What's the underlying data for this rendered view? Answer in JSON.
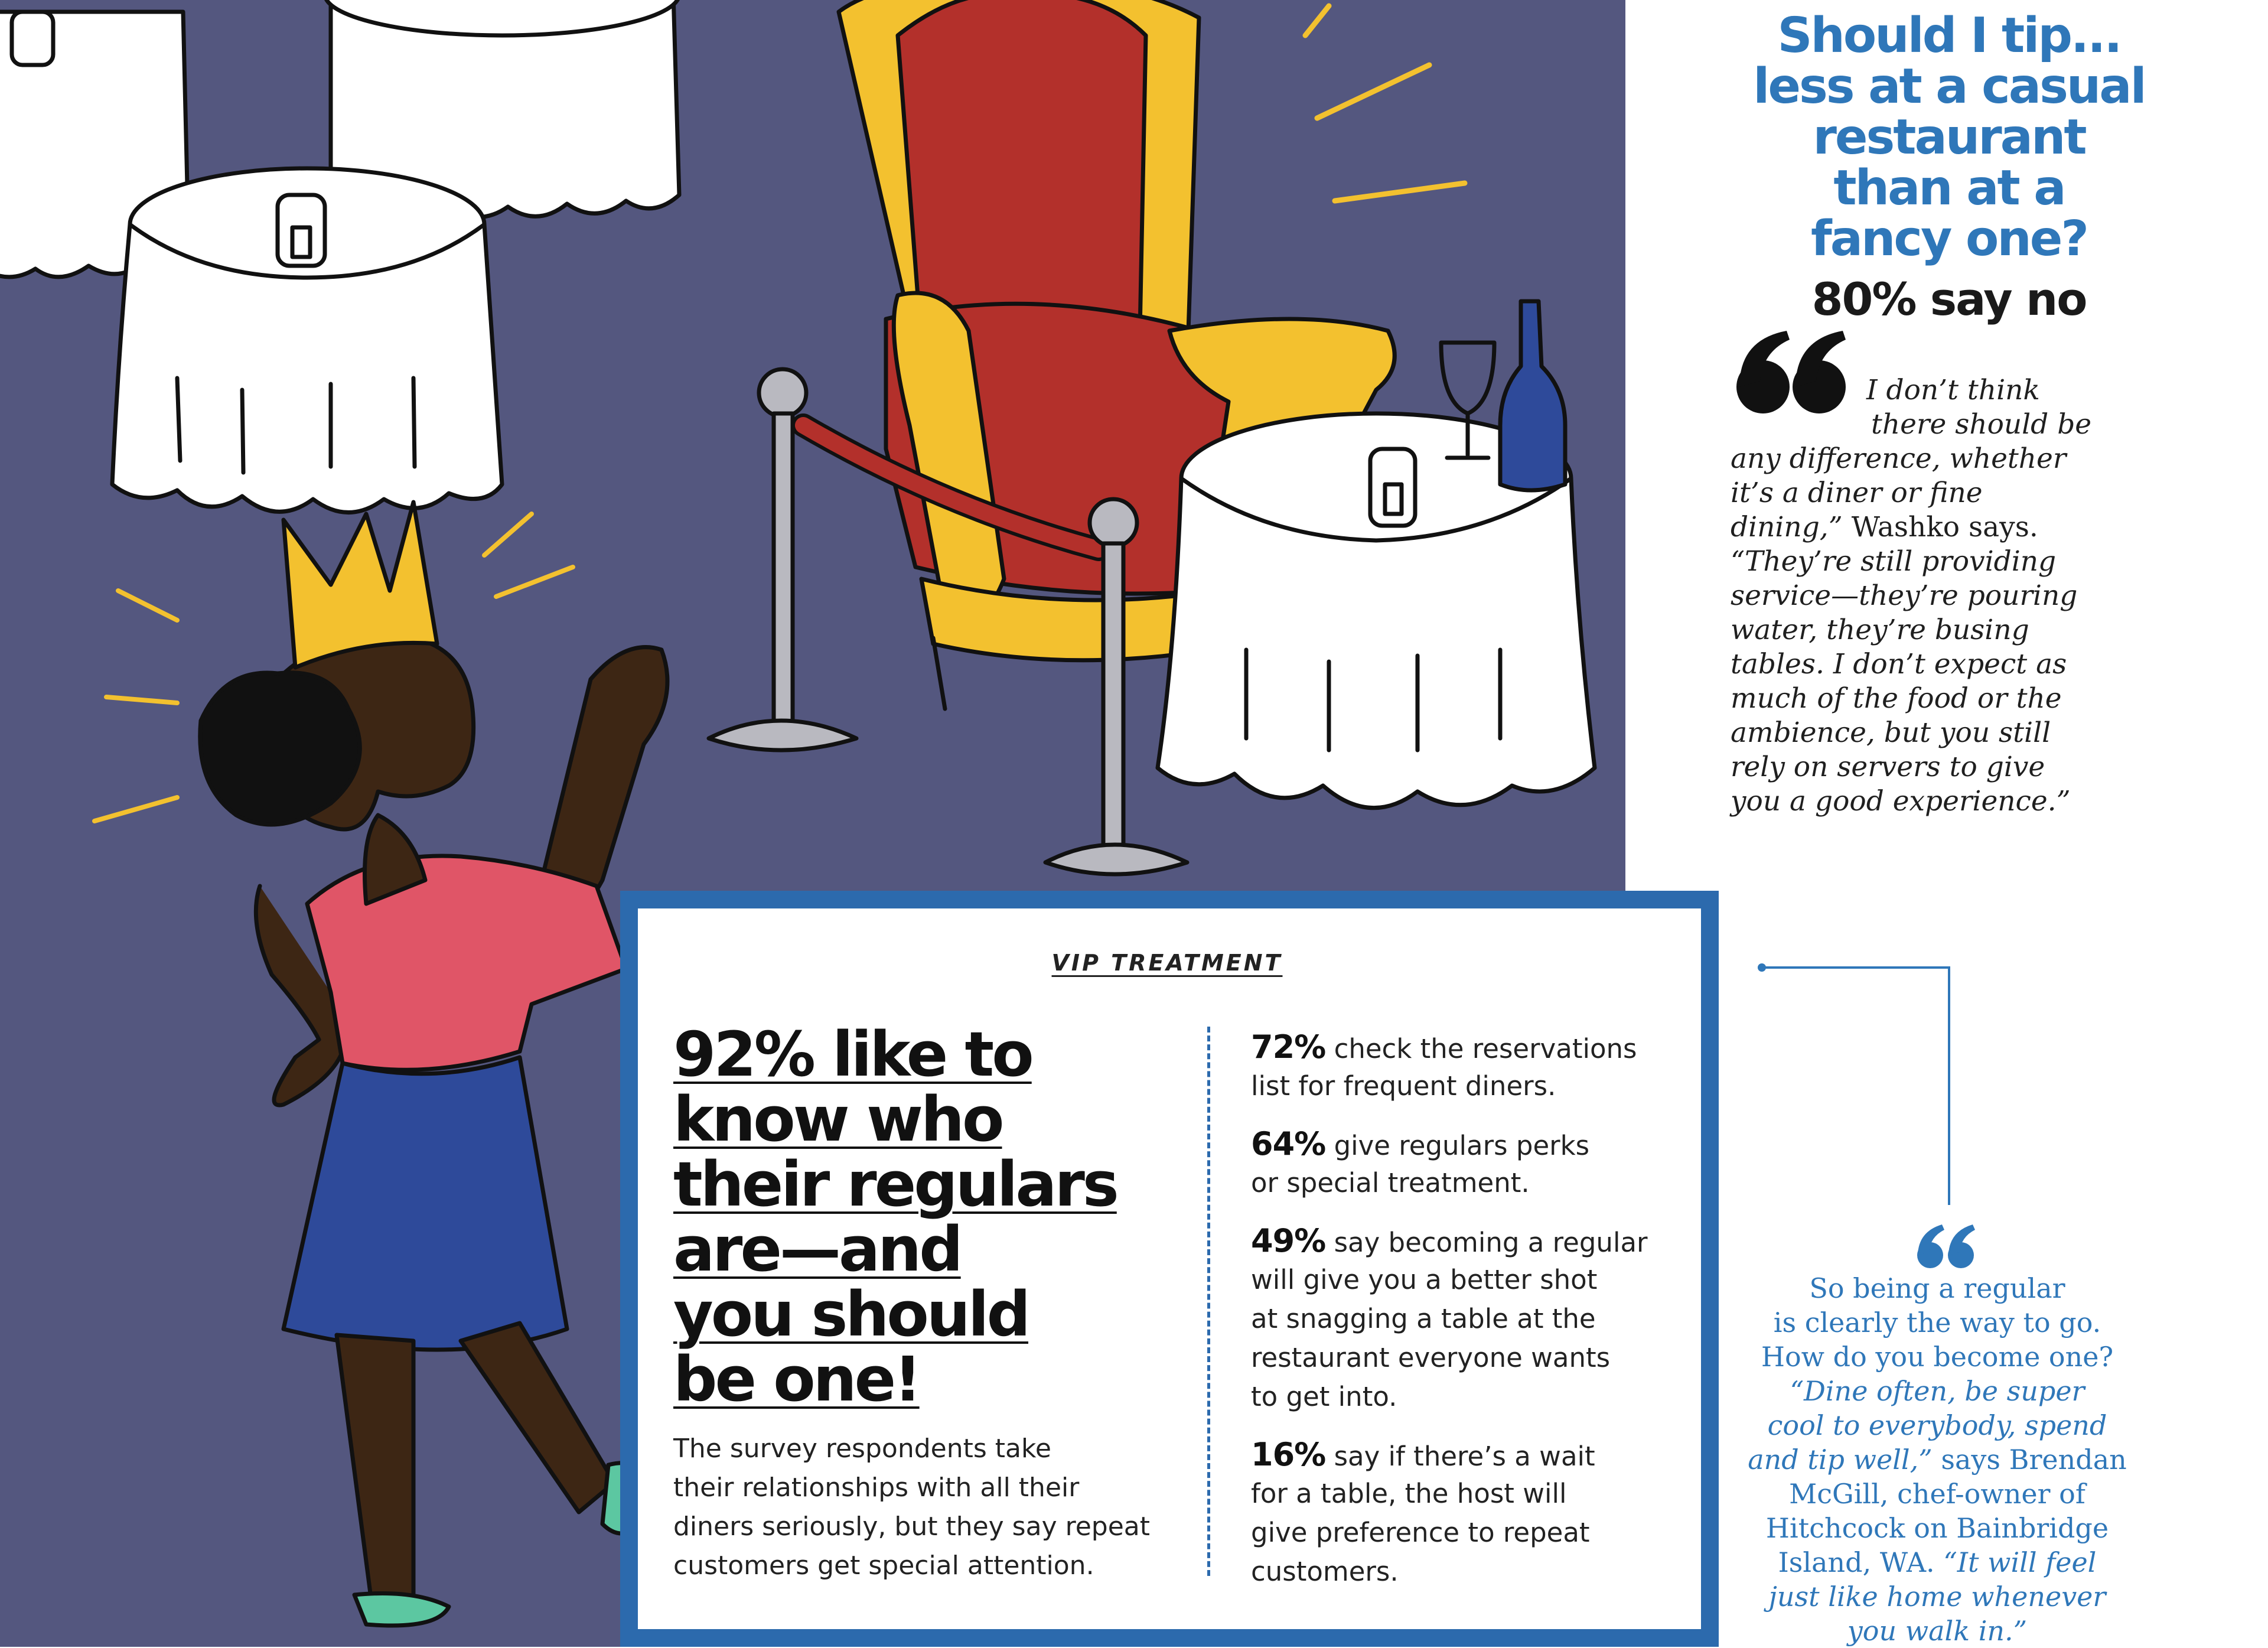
{
  "tip_sidebar": {
    "heading_lines": [
      "Should I tip...",
      "less at a casual",
      "restaurant",
      "than at a",
      "fancy one?"
    ],
    "stat": "80% say no",
    "quote_lines": [
      {
        "it": "I don’t think",
        "rm": ""
      },
      {
        "it": "there should be",
        "rm": ""
      },
      {
        "it": "any difference, whether",
        "rm": ""
      },
      {
        "it": "it’s a diner or fine",
        "rm": ""
      },
      {
        "it": "dining,”",
        "rm": " Washko says."
      },
      {
        "it": "“They’re still providing",
        "rm": ""
      },
      {
        "it": "service—they’re pouring",
        "rm": ""
      },
      {
        "it": "water, they’re busing",
        "rm": ""
      },
      {
        "it": "tables. I don’t expect as",
        "rm": ""
      },
      {
        "it": "much of the food or the",
        "rm": ""
      },
      {
        "it": "ambience, but you still",
        "rm": ""
      },
      {
        "it": "rely on servers to give",
        "rm": ""
      },
      {
        "it": "you a good experience.”",
        "rm": ""
      }
    ]
  },
  "vip_box": {
    "label": "VIP TREATMENT",
    "headline_lines": [
      "92% like to",
      "know who",
      "their regulars",
      "are—and",
      "you should",
      "be one!"
    ],
    "body_lines": [
      "The survey respondents take",
      "their relationships with all their",
      "diners seriously, but they say repeat",
      "customers get special attention."
    ],
    "stats": [
      {
        "pct": "72%",
        "lines": [
          "check the reservations",
          "list for frequent diners."
        ]
      },
      {
        "pct": "64%",
        "lines": [
          "give regulars perks",
          "or special treatment."
        ]
      },
      {
        "pct": "49%",
        "lines": [
          "say becoming a regular",
          "will give you a better shot",
          "at snagging a table at the",
          "restaurant everyone wants",
          "to get into."
        ]
      },
      {
        "pct": "16%",
        "lines": [
          "say if there’s a wait",
          "for a table, the host will",
          "give preference to repeat",
          "customers."
        ]
      }
    ]
  },
  "mcgill_callout": {
    "lines": [
      {
        "rm": "So being a regular",
        "it": ""
      },
      {
        "rm": "is clearly the way to go.",
        "it": ""
      },
      {
        "rm": "How do you become one?",
        "it": ""
      },
      {
        "rm": "",
        "it": "“Dine often, be super"
      },
      {
        "rm": "",
        "it": "cool to everybody, spend"
      },
      {
        "rm": "",
        "it": "and tip well,”",
        "rm_after": " says Brendan"
      },
      {
        "rm": "McGill, chef-owner of",
        "it": ""
      },
      {
        "rm": "Hitchcock on Bainbridge",
        "it": ""
      },
      {
        "rm": "Island, WA. ",
        "it": "",
        "it_after": "“It will feel"
      },
      {
        "rm": "",
        "it": "just like home whenever"
      },
      {
        "rm": "",
        "it": "you walk in.”"
      }
    ]
  },
  "colors": {
    "illustration_bg": "#54577f",
    "accent_blue": "#2f77b9",
    "frame_blue": "#2c6aad",
    "throne_gold": "#f3c12f",
    "throne_red": "#b3302b",
    "shirt_pink": "#e05567",
    "skirt_blue": "#2e4a9a"
  },
  "icons": [
    "quote-mark-icon",
    "candle-icon",
    "wine-bottle-icon",
    "wine-glass-icon",
    "crown-icon"
  ]
}
